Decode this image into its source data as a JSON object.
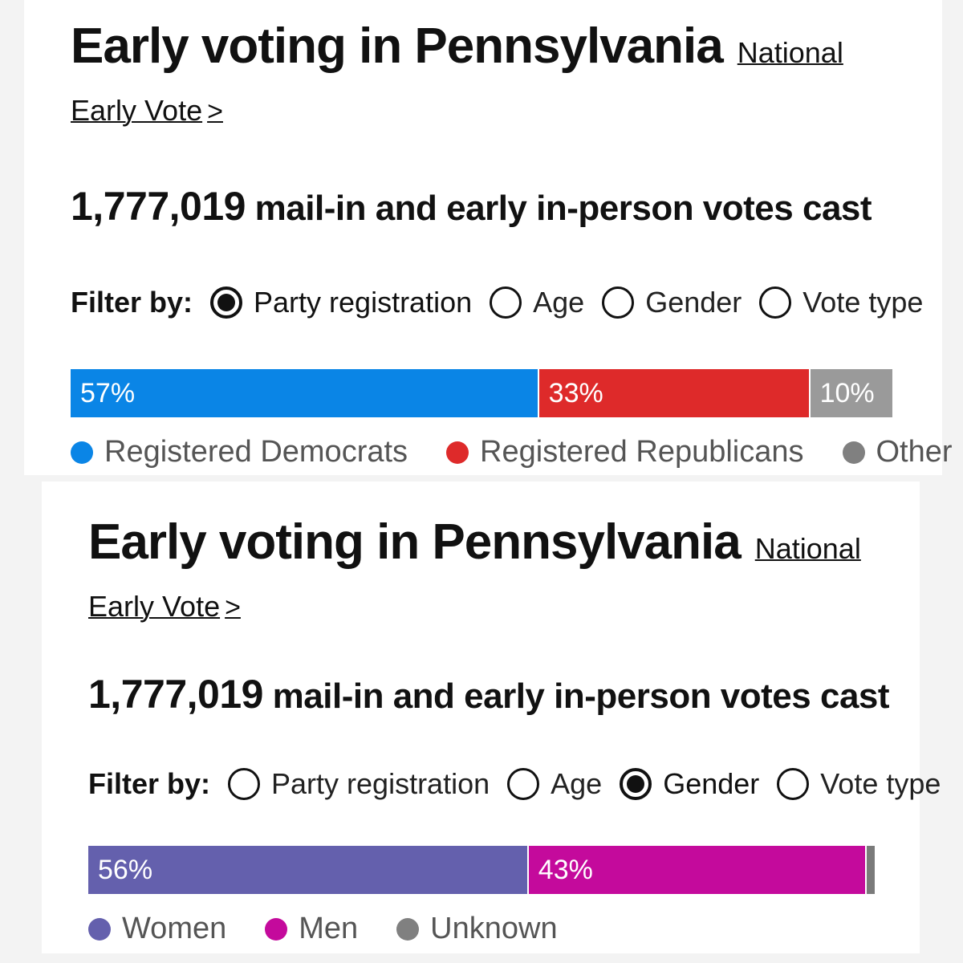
{
  "panels": [
    {
      "title": "Early voting in Pennsylvania",
      "link_label": "National Early Vote",
      "link_chevron": ">",
      "votes_count": "1,777,019",
      "votes_text": "mail-in and early in-person votes cast",
      "filter_label": "Filter by:",
      "filters": [
        {
          "label": "Party registration",
          "selected": true
        },
        {
          "label": "Age",
          "selected": false
        },
        {
          "label": "Gender",
          "selected": false
        },
        {
          "label": "Vote type",
          "selected": false
        }
      ],
      "bar": [
        {
          "label": "57%",
          "value": 57,
          "color": "#0a85e6"
        },
        {
          "label": "33%",
          "value": 33,
          "color": "#de2a2a"
        },
        {
          "label": "10%",
          "value": 10,
          "color": "#9a9a9a"
        }
      ],
      "legend": [
        {
          "label": "Registered Democrats",
          "color": "#0a85e6"
        },
        {
          "label": "Registered Republicans",
          "color": "#de2a2a"
        },
        {
          "label": "Other",
          "color": "#808080"
        }
      ]
    },
    {
      "title": "Early voting in Pennsylvania",
      "link_label": "National Early Vote",
      "link_chevron": ">",
      "votes_count": "1,777,019",
      "votes_text": "mail-in and early in-person votes cast",
      "filter_label": "Filter by:",
      "filters": [
        {
          "label": "Party registration",
          "selected": false
        },
        {
          "label": "Age",
          "selected": false
        },
        {
          "label": "Gender",
          "selected": true
        },
        {
          "label": "Vote type",
          "selected": false
        }
      ],
      "bar": [
        {
          "label": "56%",
          "value": 56,
          "color": "#6460ad"
        },
        {
          "label": "43%",
          "value": 43,
          "color": "#c40a9c"
        },
        {
          "label": "",
          "value": 1,
          "color": "#7a7a7a"
        }
      ],
      "legend": [
        {
          "label": "Women",
          "color": "#6460ad"
        },
        {
          "label": "Men",
          "color": "#c40a9c"
        },
        {
          "label": "Unknown",
          "color": "#808080"
        }
      ]
    }
  ]
}
